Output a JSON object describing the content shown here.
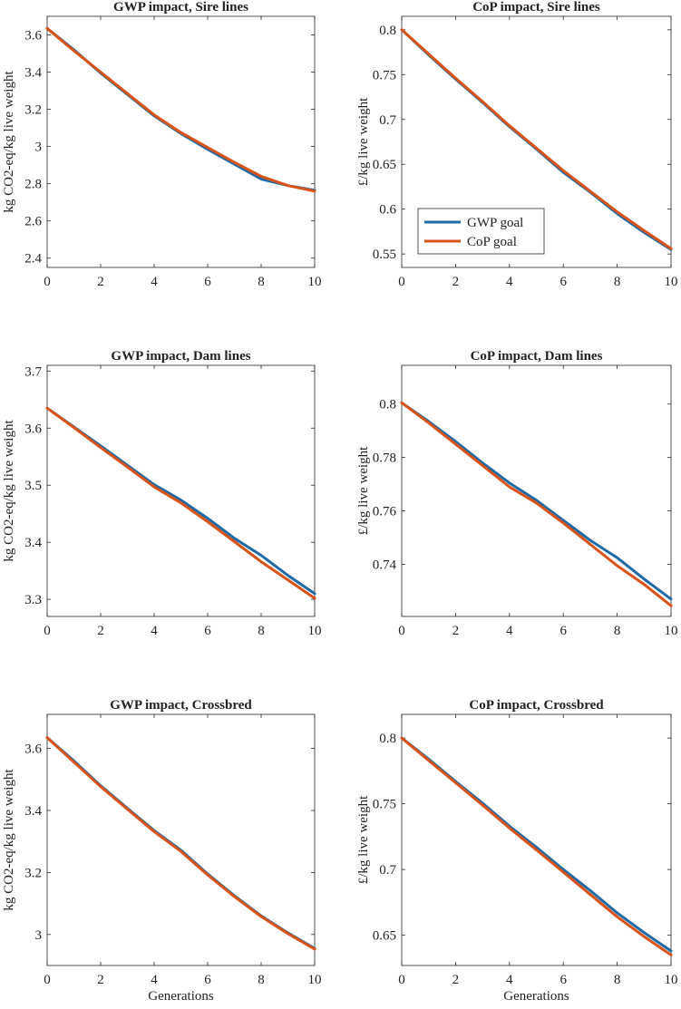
{
  "colors": {
    "gwp": "#1f6aa5",
    "cop": "#d95319",
    "axis": "#262626"
  },
  "legend": [
    "GWP goal",
    "CoP goal"
  ],
  "chart_data": [
    {
      "type": "line",
      "title": "GWP impact, Sire lines",
      "xlabel": "",
      "ylabel": "kg CO2-eq/kg live weight",
      "xlim": [
        0,
        10
      ],
      "ylim": [
        2.35,
        3.7
      ],
      "xticks": [
        0,
        2,
        4,
        6,
        8,
        10
      ],
      "xtick_labels": [
        "0",
        "2",
        "4",
        "6",
        "8",
        "10"
      ],
      "yticks": [
        2.4,
        2.6,
        2.8,
        3.0,
        3.2,
        3.4,
        3.6
      ],
      "ytick_labels": [
        "2.4",
        "2.6",
        "2.8",
        "3",
        "3.2",
        "3.4",
        "3.6"
      ],
      "x": [
        0,
        1,
        2,
        3,
        4,
        5,
        6,
        7,
        8,
        9,
        10
      ],
      "series": [
        {
          "name": "GWP goal",
          "values": [
            3.635,
            3.52,
            3.395,
            3.28,
            3.165,
            3.07,
            2.985,
            2.905,
            2.825,
            2.79,
            2.765
          ]
        },
        {
          "name": "CoP goal",
          "values": [
            3.635,
            3.515,
            3.4,
            3.285,
            3.17,
            3.075,
            2.995,
            2.915,
            2.84,
            2.79,
            2.76
          ]
        }
      ],
      "legend": false
    },
    {
      "type": "line",
      "title": "CoP impact, Sire lines",
      "xlabel": "",
      "ylabel": "£/kg live weight",
      "xlim": [
        0,
        10
      ],
      "ylim": [
        0.535,
        0.815
      ],
      "xticks": [
        0,
        2,
        4,
        6,
        8,
        10
      ],
      "xtick_labels": [
        "0",
        "2",
        "4",
        "6",
        "8",
        "10"
      ],
      "yticks": [
        0.55,
        0.6,
        0.65,
        0.7,
        0.75,
        0.8
      ],
      "ytick_labels": [
        "0.55",
        "0.6",
        "0.65",
        "0.7",
        "0.75",
        "0.8"
      ],
      "x": [
        0,
        1,
        2,
        3,
        4,
        5,
        6,
        7,
        8,
        9,
        10
      ],
      "series": [
        {
          "name": "GWP goal",
          "values": [
            0.8,
            0.772,
            0.745,
            0.719,
            0.692,
            0.667,
            0.641,
            0.619,
            0.595,
            0.574,
            0.555
          ]
        },
        {
          "name": "CoP goal",
          "values": [
            0.8,
            0.773,
            0.746,
            0.72,
            0.693,
            0.668,
            0.643,
            0.62,
            0.597,
            0.576,
            0.556
          ]
        }
      ],
      "legend": true,
      "legend_position": "bottom-left"
    },
    {
      "type": "line",
      "title": "GWP impact, Dam lines",
      "xlabel": "",
      "ylabel": "kg CO2-eq/kg live weight",
      "xlim": [
        0,
        10
      ],
      "ylim": [
        3.27,
        3.71
      ],
      "xticks": [
        0,
        2,
        4,
        6,
        8,
        10
      ],
      "xtick_labels": [
        "0",
        "2",
        "4",
        "6",
        "8",
        "10"
      ],
      "yticks": [
        3.3,
        3.4,
        3.5,
        3.6,
        3.7
      ],
      "ytick_labels": [
        "3.3",
        "3.4",
        "3.5",
        "3.6",
        "3.7"
      ],
      "x": [
        0,
        1,
        2,
        3,
        4,
        5,
        6,
        7,
        8,
        9,
        10
      ],
      "series": [
        {
          "name": "GWP goal",
          "values": [
            3.635,
            3.602,
            3.569,
            3.535,
            3.501,
            3.474,
            3.442,
            3.407,
            3.377,
            3.342,
            3.31
          ]
        },
        {
          "name": "CoP goal",
          "values": [
            3.635,
            3.601,
            3.566,
            3.532,
            3.497,
            3.469,
            3.436,
            3.401,
            3.366,
            3.334,
            3.302
          ]
        }
      ],
      "legend": false
    },
    {
      "type": "line",
      "title": "CoP impact, Dam lines",
      "xlabel": "",
      "ylabel": "£/kg live weight",
      "xlim": [
        0,
        10
      ],
      "ylim": [
        0.7205,
        0.8145
      ],
      "xticks": [
        0,
        2,
        4,
        6,
        8,
        10
      ],
      "xtick_labels": [
        "0",
        "2",
        "4",
        "6",
        "8",
        "10"
      ],
      "yticks": [
        0.74,
        0.76,
        0.78,
        0.8
      ],
      "ytick_labels": [
        "0.74",
        "0.76",
        "0.78",
        "0.8"
      ],
      "x": [
        0,
        1,
        2,
        3,
        4,
        5,
        6,
        7,
        8,
        9,
        10
      ],
      "series": [
        {
          "name": "GWP goal",
          "values": [
            0.8005,
            0.7935,
            0.786,
            0.778,
            0.7705,
            0.764,
            0.7565,
            0.749,
            0.7425,
            0.7345,
            0.727
          ]
        },
        {
          "name": "CoP goal",
          "values": [
            0.8005,
            0.793,
            0.785,
            0.777,
            0.769,
            0.763,
            0.7555,
            0.7475,
            0.7395,
            0.7325,
            0.7245
          ]
        }
      ],
      "legend": false
    },
    {
      "type": "line",
      "title": "GWP impact, Crossbred",
      "xlabel": "Generations",
      "ylabel": "kg CO2-eq/kg live weight",
      "xlim": [
        0,
        10
      ],
      "ylim": [
        2.9,
        3.71
      ],
      "xticks": [
        0,
        2,
        4,
        6,
        8,
        10
      ],
      "xtick_labels": [
        "0",
        "2",
        "4",
        "6",
        "8",
        "10"
      ],
      "yticks": [
        3.0,
        3.2,
        3.4,
        3.6
      ],
      "ytick_labels": [
        "3",
        "3.2",
        "3.4",
        "3.6"
      ],
      "x": [
        0,
        1,
        2,
        3,
        4,
        5,
        6,
        7,
        8,
        9,
        10
      ],
      "series": [
        {
          "name": "GWP goal",
          "values": [
            3.635,
            3.56,
            3.48,
            3.407,
            3.335,
            3.272,
            3.195,
            3.125,
            3.06,
            3.005,
            2.955
          ]
        },
        {
          "name": "CoP goal",
          "values": [
            3.635,
            3.556,
            3.477,
            3.404,
            3.332,
            3.268,
            3.192,
            3.122,
            3.058,
            3.003,
            2.953
          ]
        }
      ],
      "legend": false
    },
    {
      "type": "line",
      "title": "CoP impact, Crossbred",
      "xlabel": "Generations",
      "ylabel": "£/kg live weight",
      "xlim": [
        0,
        10
      ],
      "ylim": [
        0.627,
        0.818
      ],
      "xticks": [
        0,
        2,
        4,
        6,
        8,
        10
      ],
      "xtick_labels": [
        "0",
        "2",
        "4",
        "6",
        "8",
        "10"
      ],
      "yticks": [
        0.65,
        0.7,
        0.75,
        0.8
      ],
      "ytick_labels": [
        "0.65",
        "0.7",
        "0.75",
        "0.8"
      ],
      "x": [
        0,
        1,
        2,
        3,
        4,
        5,
        6,
        7,
        8,
        9,
        10
      ],
      "series": [
        {
          "name": "GWP goal",
          "values": [
            0.8,
            0.784,
            0.767,
            0.7505,
            0.733,
            0.717,
            0.7,
            0.684,
            0.667,
            0.652,
            0.638
          ]
        },
        {
          "name": "CoP goal",
          "values": [
            0.8,
            0.783,
            0.766,
            0.749,
            0.7315,
            0.715,
            0.698,
            0.681,
            0.664,
            0.649,
            0.635
          ]
        }
      ],
      "legend": false
    }
  ]
}
